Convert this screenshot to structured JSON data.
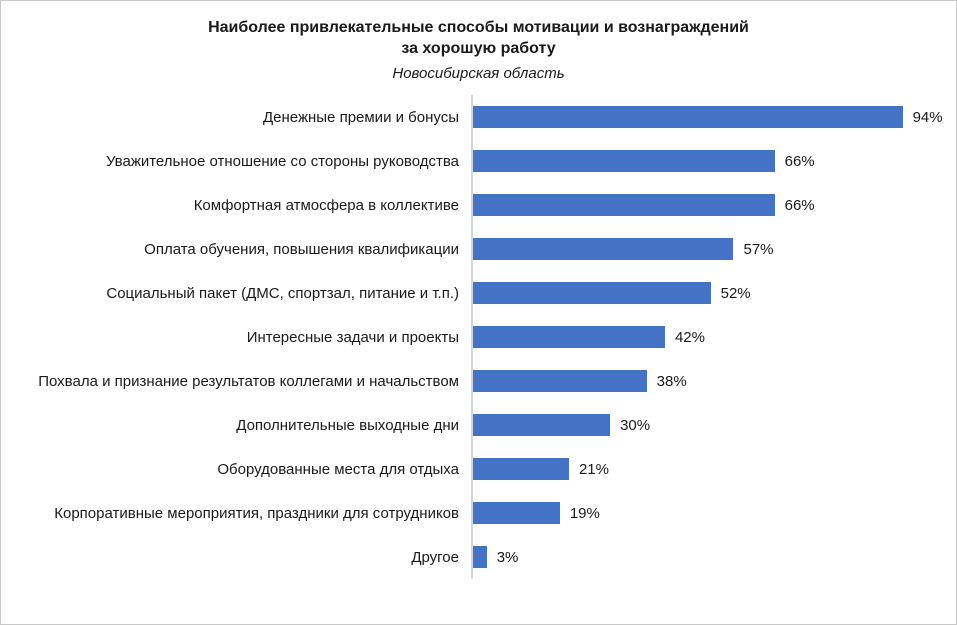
{
  "chart_data": {
    "type": "bar",
    "orientation": "horizontal",
    "title_line1": "Наиболее привлекательные способы мотивации и вознаграждений",
    "title_line2": "за хорошую работу",
    "subtitle": "Новосибирская область",
    "categories": [
      "Денежные премии и бонусы",
      "Уважительное отношение со стороны руководства",
      "Комфортная атмосфера в коллективе",
      "Оплата обучения, повышения квалификации",
      "Социальный пакет (ДМС, спортзал, питание и т.п.)",
      "Интересные задачи и проекты",
      "Похвала и признание результатов коллегами и начальством",
      "Дополнительные выходные дни",
      "Оборудованные места для отдыха",
      "Корпоративные мероприятия, праздники для сотрудников",
      "Другое"
    ],
    "values": [
      94,
      66,
      66,
      57,
      52,
      42,
      38,
      30,
      21,
      19,
      3
    ],
    "value_suffix": "%",
    "xlim": [
      0,
      100
    ],
    "bar_color": "#4472C4",
    "axis_line_color": "#D6D6D6",
    "grid": false,
    "legend": false
  }
}
